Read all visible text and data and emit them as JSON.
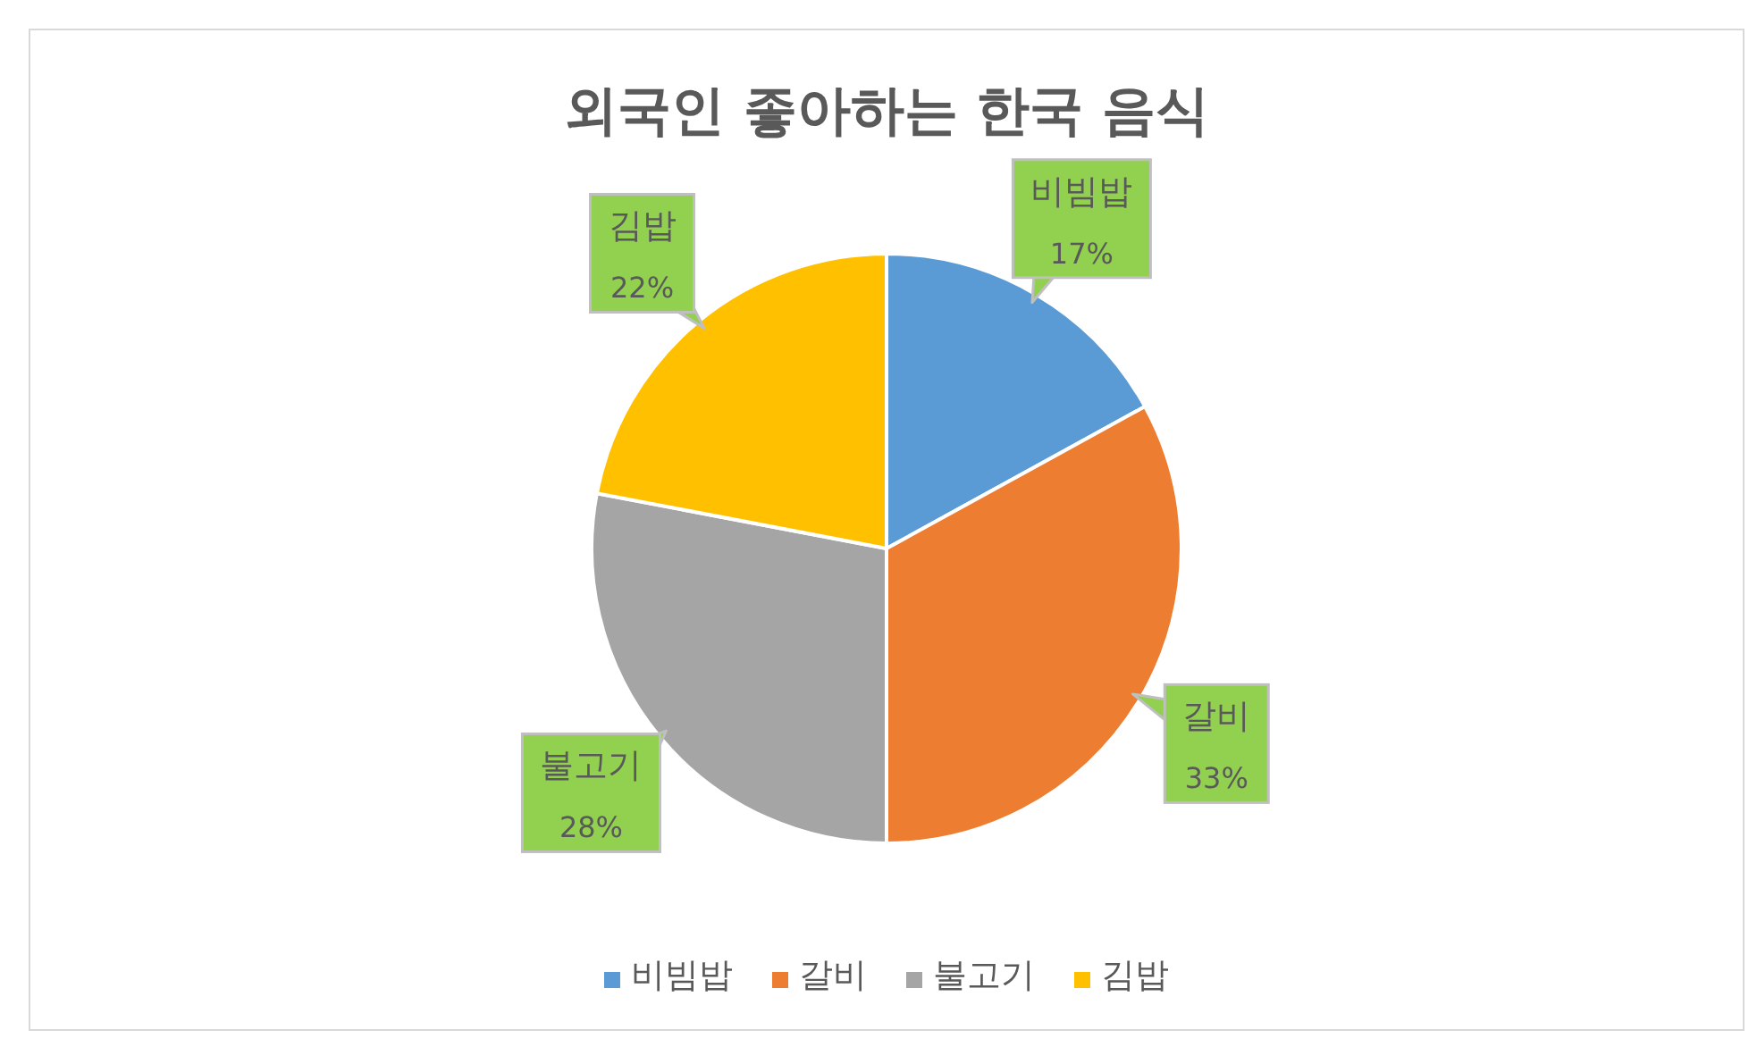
{
  "chart_data": {
    "type": "pie",
    "title": "외국인 좋아하는 한국 음식",
    "categories": [
      "비빔밥",
      "갈비",
      "불고기",
      "김밥"
    ],
    "values": [
      17,
      33,
      28,
      22
    ],
    "colors": [
      "#5b9bd5",
      "#ed7d31",
      "#a5a5a5",
      "#ffc000"
    ],
    "value_labels": [
      "17%",
      "33%",
      "28%",
      "22%"
    ],
    "legend": "bottom"
  }
}
